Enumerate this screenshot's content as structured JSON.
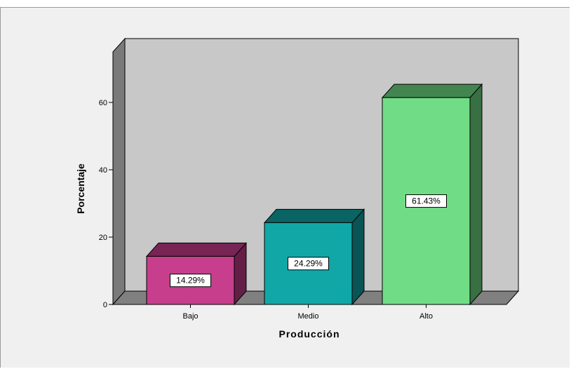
{
  "chart_data": {
    "type": "bar",
    "style": "3d",
    "categories": [
      "Bajo",
      "Medio",
      "Alto"
    ],
    "values": [
      14.29,
      24.29,
      61.43
    ],
    "data_labels": [
      "14.29%",
      "24.29%",
      "61.43%"
    ],
    "colors": [
      "#c63e8c",
      "#12a7a7",
      "#70dd86"
    ],
    "xlabel": "Producción",
    "ylabel": "Porcentaje",
    "ylim": [
      0,
      75
    ],
    "yticks": [
      0,
      20,
      40,
      60
    ],
    "grid": false,
    "legend": "none",
    "wall_color": "#c8c8c8",
    "floor_color": "#808080",
    "frame_color": "#f0f0f0"
  }
}
